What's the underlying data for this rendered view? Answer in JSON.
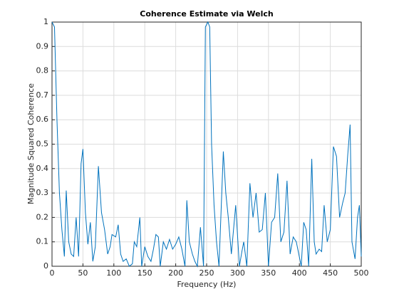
{
  "chart_data": {
    "type": "line",
    "title": "Coherence Estimate via Welch",
    "x_label": "Frequency (Hz)",
    "y_label": "Magnitude Squared Coherence",
    "x": [
      0,
      4,
      8,
      12,
      16,
      20,
      23,
      27,
      31,
      35,
      39,
      43,
      47,
      50,
      54,
      58,
      62,
      66,
      70,
      75,
      80,
      85,
      90,
      94,
      97,
      103,
      107,
      111,
      115,
      120,
      125,
      130,
      133,
      137,
      142,
      145,
      150,
      155,
      160,
      164,
      168,
      172,
      175,
      180,
      185,
      190,
      195,
      200,
      205,
      210,
      215,
      218,
      222,
      227,
      231,
      235,
      240,
      245,
      248,
      252,
      255,
      258,
      262,
      266,
      270,
      273,
      277,
      281,
      285,
      290,
      297,
      303,
      307,
      310,
      315,
      320,
      325,
      330,
      335,
      340,
      345,
      350,
      355,
      360,
      365,
      370,
      375,
      380,
      385,
      390,
      395,
      399,
      403,
      407,
      411,
      415,
      420,
      424,
      427,
      432,
      436,
      440,
      445,
      450,
      455,
      460,
      465,
      470,
      474,
      478,
      482,
      485,
      490,
      494,
      497,
      500
    ],
    "series": [
      {
        "name": "Coherence",
        "color": "#0072bd",
        "values": [
          1.0,
          0.98,
          0.6,
          0.3,
          0.15,
          0.04,
          0.31,
          0.1,
          0.05,
          0.04,
          0.2,
          0.04,
          0.42,
          0.48,
          0.22,
          0.09,
          0.18,
          0.02,
          0.08,
          0.41,
          0.22,
          0.15,
          0.05,
          0.08,
          0.13,
          0.12,
          0.17,
          0.05,
          0.02,
          0.03,
          0.0,
          0.01,
          0.1,
          0.08,
          0.2,
          0.0,
          0.08,
          0.04,
          0.02,
          0.07,
          0.13,
          0.12,
          0.0,
          0.1,
          0.07,
          0.11,
          0.07,
          0.09,
          0.12,
          0.07,
          0.0,
          0.27,
          0.1,
          0.05,
          0.02,
          0.0,
          0.16,
          0.0,
          0.98,
          1.0,
          0.98,
          0.5,
          0.25,
          0.1,
          0.0,
          0.2,
          0.47,
          0.3,
          0.2,
          0.05,
          0.25,
          0.0,
          0.06,
          0.1,
          0.0,
          0.34,
          0.2,
          0.3,
          0.14,
          0.15,
          0.3,
          0.0,
          0.18,
          0.2,
          0.38,
          0.1,
          0.14,
          0.35,
          0.05,
          0.12,
          0.1,
          0.05,
          0.0,
          0.18,
          0.15,
          0.0,
          0.44,
          0.1,
          0.05,
          0.07,
          0.06,
          0.25,
          0.1,
          0.15,
          0.49,
          0.45,
          0.2,
          0.26,
          0.3,
          0.45,
          0.58,
          0.1,
          0.03,
          0.2,
          0.25,
          0.04
        ]
      }
    ],
    "xlim": [
      0,
      500
    ],
    "xticks": [
      0,
      50,
      100,
      150,
      200,
      250,
      300,
      350,
      400,
      450,
      500
    ],
    "ylim": [
      0,
      1
    ],
    "yticks": [
      0,
      0.1,
      0.2,
      0.3,
      0.4,
      0.5,
      0.6,
      0.7,
      0.8,
      0.9,
      1
    ],
    "grid": true
  }
}
